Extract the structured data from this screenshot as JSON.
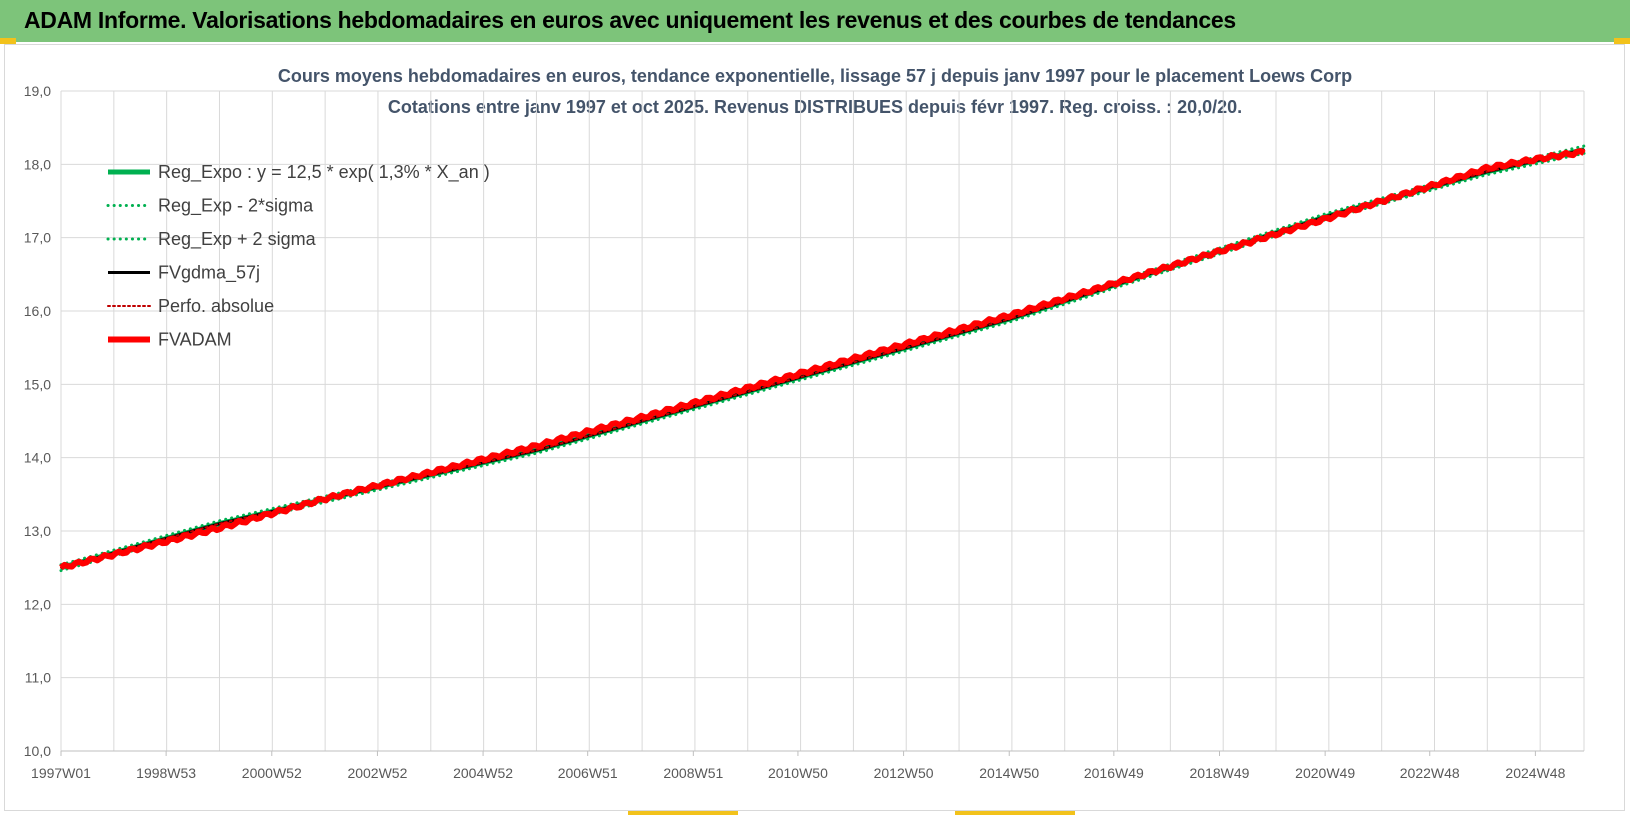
{
  "header": {
    "title": "ADAM Informe. Valorisations hebdomadaires en euros avec uniquement les revenus et des courbes de tendances"
  },
  "colors": {
    "banner": "#7dc47a",
    "accent": "#f2c21b",
    "title_text": "#44546a",
    "grid": "#d9d9d9",
    "green": "#00b050",
    "black": "#000000",
    "red": "#ff0000"
  },
  "chart_data": {
    "type": "line",
    "title": "Cours moyens hebdomadaires en euros, tendance exponentielle, lissage 57 j depuis janv 1997 pour le placement Loews Corp",
    "subtitle": "Cotations entre janv 1997 et oct 2025. Revenus DISTRIBUES depuis févr 1997. Reg. croiss. : 20,0/20.",
    "xlabel": "",
    "ylabel": "",
    "ylim": [
      10.0,
      19.0
    ],
    "yticks": [
      "10,0",
      "11,0",
      "12,0",
      "13,0",
      "14,0",
      "15,0",
      "16,0",
      "17,0",
      "18,0",
      "19,0"
    ],
    "xlim": [
      1997.0,
      2025.83
    ],
    "xticks": [
      {
        "label": "1997W01",
        "x": 1997.0
      },
      {
        "label": "1998W53",
        "x": 1998.99
      },
      {
        "label": "2000W52",
        "x": 2000.99
      },
      {
        "label": "2002W52",
        "x": 2002.99
      },
      {
        "label": "2004W52",
        "x": 2004.99
      },
      {
        "label": "2006W51",
        "x": 2006.97
      },
      {
        "label": "2008W51",
        "x": 2008.97
      },
      {
        "label": "2010W50",
        "x": 2010.95
      },
      {
        "label": "2012W50",
        "x": 2012.95
      },
      {
        "label": "2014W50",
        "x": 2014.95
      },
      {
        "label": "2016W49",
        "x": 2016.93
      },
      {
        "label": "2018W49",
        "x": 2018.93
      },
      {
        "label": "2020W49",
        "x": 2020.93
      },
      {
        "label": "2022W48",
        "x": 2022.91
      },
      {
        "label": "2024W48",
        "x": 2024.91
      }
    ],
    "grid": true,
    "legend_position": "top-left",
    "legend": [
      {
        "label": "Reg_Expo : y = 12,5 * exp( 1,3% *  X_an )",
        "color": "#00b050",
        "style": "solid",
        "width": 5
      },
      {
        "label": "Reg_Exp - 2*sigma",
        "color": "#00b050",
        "style": "dotted",
        "width": 3
      },
      {
        "label": "Reg_Exp + 2 sigma",
        "color": "#00b050",
        "style": "dotted",
        "width": 3
      },
      {
        "label": "FVgdma_57j",
        "color": "#000000",
        "style": "solid",
        "width": 3
      },
      {
        "label": "Perfo. absolue",
        "color": "#c00000",
        "style": "dotted",
        "width": 2
      },
      {
        "label": "FVADAM",
        "color": "#ff0000",
        "style": "solid",
        "width": 6
      }
    ],
    "series": [
      {
        "name": "Reg_Expo : y = 12,5 * exp( 1,3% *  X_an )",
        "x": [
          1997,
          2000,
          2003,
          2006,
          2009,
          2012,
          2015,
          2018,
          2021,
          2024,
          2025.83
        ],
        "y": [
          12.5,
          13.1,
          13.6,
          14.1,
          14.7,
          15.3,
          15.9,
          16.6,
          17.3,
          17.9,
          18.2
        ]
      },
      {
        "name": "Reg_Exp - 2*sigma",
        "x": [
          1997,
          2000,
          2003,
          2006,
          2009,
          2012,
          2015,
          2018,
          2021,
          2024,
          2025.83
        ],
        "y": [
          12.46,
          13.06,
          13.56,
          14.06,
          14.66,
          15.26,
          15.86,
          16.56,
          17.26,
          17.86,
          18.15
        ]
      },
      {
        "name": "Reg_Exp + 2 sigma",
        "x": [
          1997,
          2000,
          2003,
          2006,
          2009,
          2012,
          2015,
          2018,
          2021,
          2024,
          2025.83
        ],
        "y": [
          12.54,
          13.14,
          13.64,
          14.14,
          14.74,
          15.34,
          15.94,
          16.64,
          17.34,
          17.94,
          18.25
        ]
      },
      {
        "name": "FVgdma_57j",
        "x": [
          1997,
          2000,
          2003,
          2006,
          2009,
          2012,
          2015,
          2018,
          2021,
          2024,
          2025.83
        ],
        "y": [
          12.5,
          13.1,
          13.6,
          14.1,
          14.7,
          15.3,
          15.9,
          16.6,
          17.3,
          17.9,
          18.2
        ]
      },
      {
        "name": "Perfo. absolue",
        "x": [
          1997,
          2000,
          2003,
          2006,
          2009,
          2012,
          2015,
          2018,
          2021,
          2024,
          2025.83
        ],
        "y": [
          12.5,
          13.1,
          13.6,
          14.1,
          14.7,
          15.3,
          15.9,
          16.6,
          17.3,
          17.9,
          18.2
        ]
      },
      {
        "name": "FVADAM",
        "x": [
          1997,
          1998,
          1999,
          2000,
          2001,
          2002,
          2003,
          2004,
          2005,
          2006,
          2007,
          2008,
          2009,
          2010,
          2011,
          2012,
          2013,
          2014,
          2015,
          2016,
          2017,
          2018,
          2019,
          2020,
          2021,
          2022,
          2023,
          2024,
          2025,
          2025.83
        ],
        "y": [
          12.5,
          12.68,
          12.86,
          13.04,
          13.24,
          13.44,
          13.62,
          13.8,
          13.98,
          14.16,
          14.36,
          14.55,
          14.75,
          14.95,
          15.15,
          15.35,
          15.55,
          15.75,
          15.95,
          16.17,
          16.39,
          16.61,
          16.83,
          17.05,
          17.27,
          17.5,
          17.72,
          17.95,
          18.08,
          18.17
        ]
      }
    ]
  }
}
